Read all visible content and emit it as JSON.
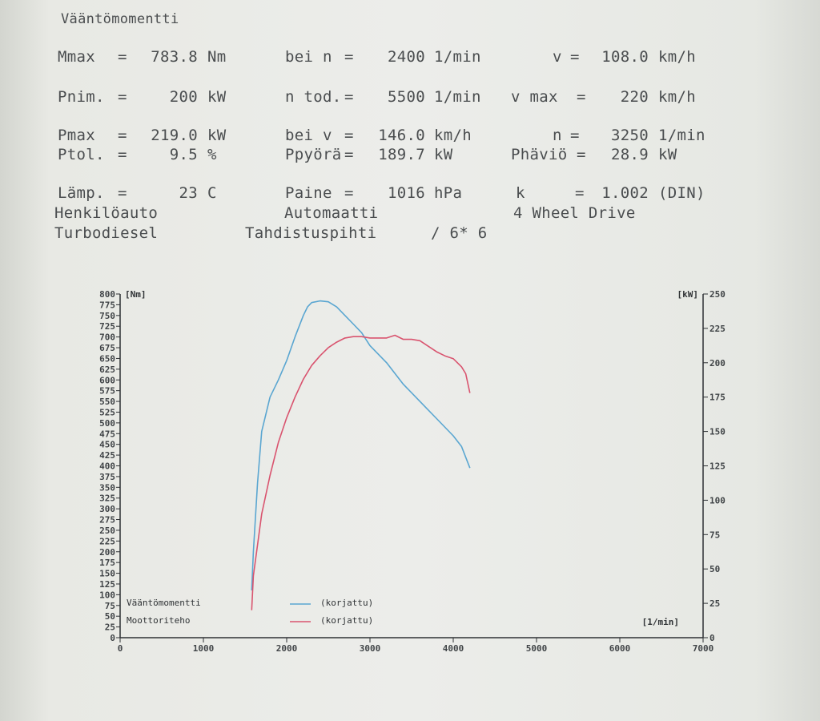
{
  "report": {
    "title": "Vääntömomentti",
    "rows": [
      [
        {
          "key": "mmax",
          "label": "Mmax",
          "eq": "=",
          "value": "783.8",
          "unit": "Nm"
        },
        {
          "key": "bei_n",
          "label": "bei n",
          "eq": "=",
          "value": "2400",
          "unit": "1/min"
        },
        {
          "key": "v",
          "label": "v",
          "eq": "=",
          "value": "108.0",
          "unit": "km/h"
        }
      ],
      [
        {
          "key": "pnim",
          "label": "Pnim.",
          "eq": "=",
          "value": "200",
          "unit": "kW"
        },
        {
          "key": "n_tod",
          "label": "n tod.",
          "eq": "=",
          "value": "5500",
          "unit": "1/min"
        },
        {
          "key": "v_max",
          "label": "v max",
          "eq": "=",
          "value": "220",
          "unit": "km/h"
        }
      ],
      [
        {
          "key": "pmax",
          "label": "Pmax",
          "eq": "=",
          "value": "219.0",
          "unit": "kW"
        },
        {
          "key": "bei_v",
          "label": "bei v",
          "eq": "=",
          "value": "146.0",
          "unit": "km/h"
        },
        {
          "key": "n",
          "label": "n",
          "eq": "=",
          "value": "3250",
          "unit": "1/min"
        }
      ],
      [
        {
          "key": "ptol",
          "label": "Ptol.",
          "eq": "=",
          "value": "9.5",
          "unit": "%"
        },
        {
          "key": "ppyora",
          "label": "Ppyörä",
          "eq": "=",
          "value": "189.7",
          "unit": "kW"
        },
        {
          "key": "phavio",
          "label": "Phäviö",
          "eq": "=",
          "value": "28.9",
          "unit": "kW"
        }
      ],
      [
        {
          "key": "lamp",
          "label": "Lämp.",
          "eq": "=",
          "value": "23",
          "unit": "C"
        },
        {
          "key": "paine",
          "label": "Paine",
          "eq": "=",
          "value": "1016",
          "unit": "hPa"
        },
        {
          "key": "k",
          "label": "k",
          "eq": "=",
          "value": "1.002",
          "unit": "(DIN)"
        }
      ]
    ],
    "vehicle": "Henkilöauto",
    "transmission": "Automaatti",
    "drive": "4 Wheel Drive",
    "engine": "Turbodiesel",
    "sync": "Tahdistuspihti",
    "ratio": "/ 6* 6"
  },
  "colors": {
    "torque": "#5aa6d1",
    "power": "#d9546f",
    "axis": "#2e3134",
    "text": "#4a4d4f"
  },
  "chart_data": {
    "type": "line",
    "xlabel": "[1/min]",
    "ylabel_left": "[Nm]",
    "ylabel_right": "[kW]",
    "xlim": [
      0,
      7000
    ],
    "ylim_left": [
      0,
      800
    ],
    "ylim_right": [
      0,
      250
    ],
    "x_ticks": [
      "0",
      "1000",
      "2000",
      "3000",
      "4000",
      "5000",
      "6000",
      "7000"
    ],
    "y_left_ticks": [
      "0",
      "25",
      "50",
      "75",
      "100",
      "125",
      "150",
      "175",
      "200",
      "225",
      "250",
      "275",
      "300",
      "325",
      "350",
      "375",
      "400",
      "425",
      "450",
      "475",
      "500",
      "525",
      "550",
      "575",
      "600",
      "625",
      "650",
      "675",
      "700",
      "725",
      "750",
      "775",
      "800"
    ],
    "y_right_ticks": [
      "0",
      "25",
      "50",
      "75",
      "100",
      "125",
      "150",
      "175",
      "200",
      "225",
      "250"
    ],
    "legend": [
      {
        "name": "Vääntömomentti",
        "suffix": "(korjattu)",
        "series": "torque"
      },
      {
        "name": "Moottoriteho",
        "suffix": "(korjattu)",
        "series": "power"
      }
    ],
    "series": [
      {
        "id": "torque",
        "axis": "left",
        "x": [
          1580,
          1600,
          1650,
          1700,
          1800,
          1900,
          2000,
          2100,
          2200,
          2250,
          2300,
          2400,
          2500,
          2600,
          2700,
          2800,
          2900,
          3000,
          3200,
          3400,
          3600,
          3800,
          4000,
          4100,
          4200
        ],
        "y": [
          110,
          200,
          360,
          480,
          560,
          600,
          645,
          700,
          750,
          770,
          780,
          784,
          782,
          770,
          750,
          730,
          710,
          680,
          640,
          590,
          550,
          510,
          470,
          445,
          395
        ]
      },
      {
        "id": "power",
        "axis": "right",
        "x": [
          1580,
          1600,
          1700,
          1800,
          1900,
          2000,
          2100,
          2200,
          2300,
          2400,
          2500,
          2600,
          2700,
          2800,
          2900,
          3000,
          3100,
          3200,
          3300,
          3400,
          3500,
          3600,
          3700,
          3800,
          3900,
          4000,
          4100,
          4150,
          4200
        ],
        "y": [
          20,
          45,
          90,
          118,
          142,
          160,
          175,
          188,
          198,
          205,
          211,
          215,
          218,
          219,
          219,
          218,
          218,
          218,
          220,
          217,
          217,
          216,
          212,
          208,
          205,
          203,
          197,
          192,
          178
        ]
      }
    ]
  }
}
